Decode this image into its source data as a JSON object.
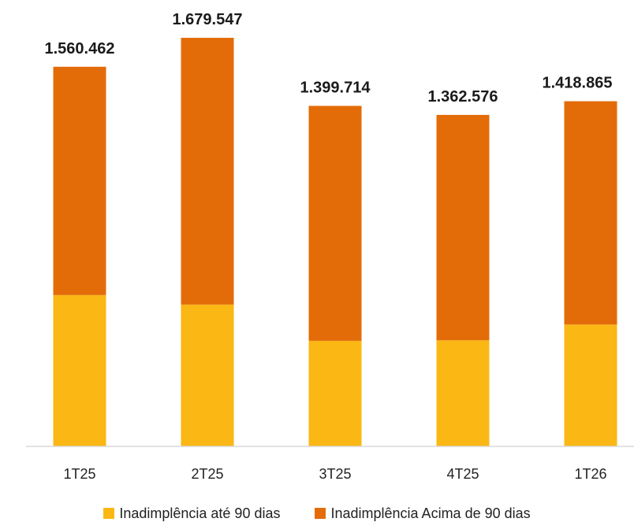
{
  "chart_data": {
    "type": "bar",
    "stacked": true,
    "categories": [
      "1T25",
      "2T25",
      "3T25",
      "4T25",
      "1T26"
    ],
    "totals": [
      1560462,
      1679547,
      1399714,
      1362576,
      1418865
    ],
    "total_labels": [
      "1.560.462",
      "1.679.547",
      "1.399.714",
      "1.362.576",
      "1.418.865"
    ],
    "series": [
      {
        "name": "Inadimplência até 90 dias",
        "color": "#FBB714",
        "values": [
          622000,
          583000,
          434000,
          436000,
          501000
        ]
      },
      {
        "name": "Inadimplência Acima de 90 dias",
        "color": "#E36C09",
        "values": [
          938462,
          1096547,
          965714,
          926576,
          917865
        ]
      }
    ],
    "ylim": [
      0,
      1679547
    ],
    "grid": false,
    "legend_position": "bottom"
  }
}
